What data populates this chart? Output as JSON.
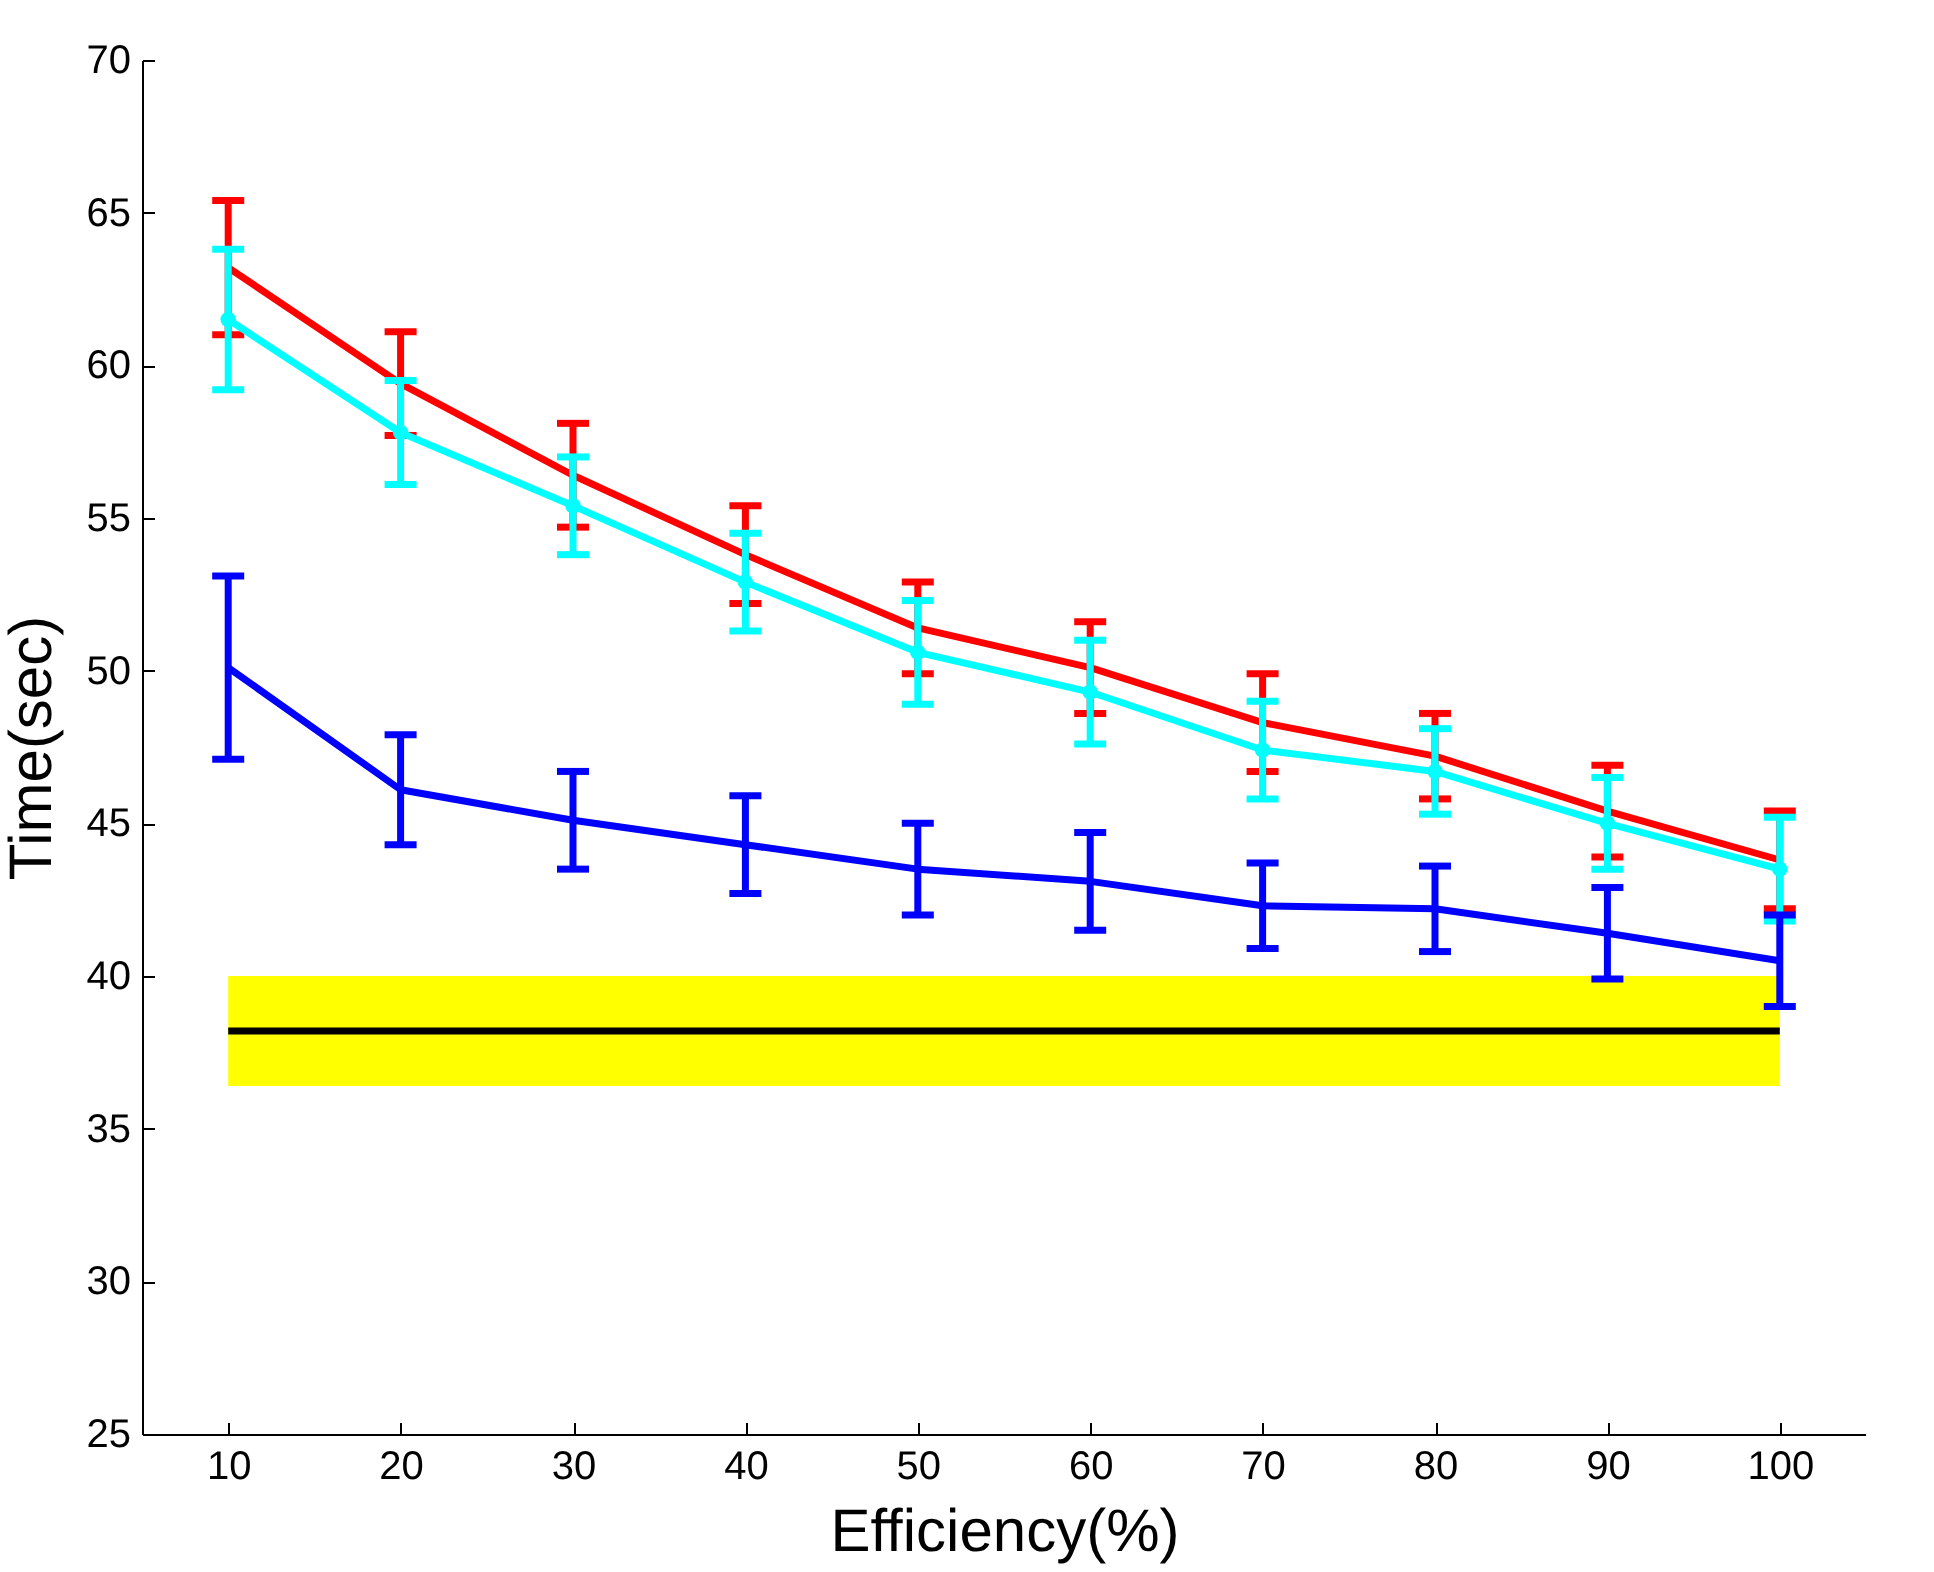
{
  "chart_data": {
    "type": "line",
    "xlabel": "Efficiency(%)",
    "ylabel": "Time(sec)",
    "x": [
      10,
      20,
      30,
      40,
      50,
      60,
      70,
      80,
      90,
      100
    ],
    "xlim": [
      5,
      105
    ],
    "xticks": [
      10,
      20,
      30,
      40,
      50,
      60,
      70,
      80,
      90,
      100
    ],
    "ylim": [
      25,
      70
    ],
    "yticks": [
      25,
      30,
      35,
      40,
      45,
      50,
      55,
      60,
      65,
      70
    ],
    "grid": false,
    "line_style": "solid",
    "bands": [
      {
        "axis": "y",
        "from": 36.4,
        "to": 40,
        "color": "#ffff00"
      }
    ],
    "series": [
      {
        "type": "line",
        "color": "#000000",
        "x": [
          10,
          100
        ],
        "values": [
          38.2,
          38.2
        ],
        "marker": "none"
      },
      {
        "color": "#ff0000",
        "marker": "none",
        "values": [
          63.2,
          59.4,
          56.4,
          53.8,
          51.4,
          50.1,
          48.3,
          47.2,
          45.4,
          43.8
        ],
        "errors": [
          2.2,
          1.7,
          1.7,
          1.6,
          1.5,
          1.5,
          1.6,
          1.4,
          1.5,
          1.6
        ]
      },
      {
        "color": "#00ffff",
        "marker": "circle",
        "values": [
          61.5,
          57.8,
          55.4,
          52.9,
          50.6,
          49.3,
          47.4,
          46.7,
          45.0,
          43.5
        ],
        "errors": [
          2.3,
          1.7,
          1.6,
          1.6,
          1.7,
          1.7,
          1.6,
          1.4,
          1.5,
          1.7
        ]
      },
      {
        "color": "#0000ff",
        "marker": "none",
        "values": [
          50.1,
          46.1,
          45.1,
          44.3,
          43.5,
          43.1,
          42.3,
          42.2,
          41.4,
          40.5
        ],
        "errors": [
          3.0,
          1.8,
          1.6,
          1.6,
          1.5,
          1.6,
          1.4,
          1.4,
          1.5,
          1.5
        ]
      }
    ]
  }
}
